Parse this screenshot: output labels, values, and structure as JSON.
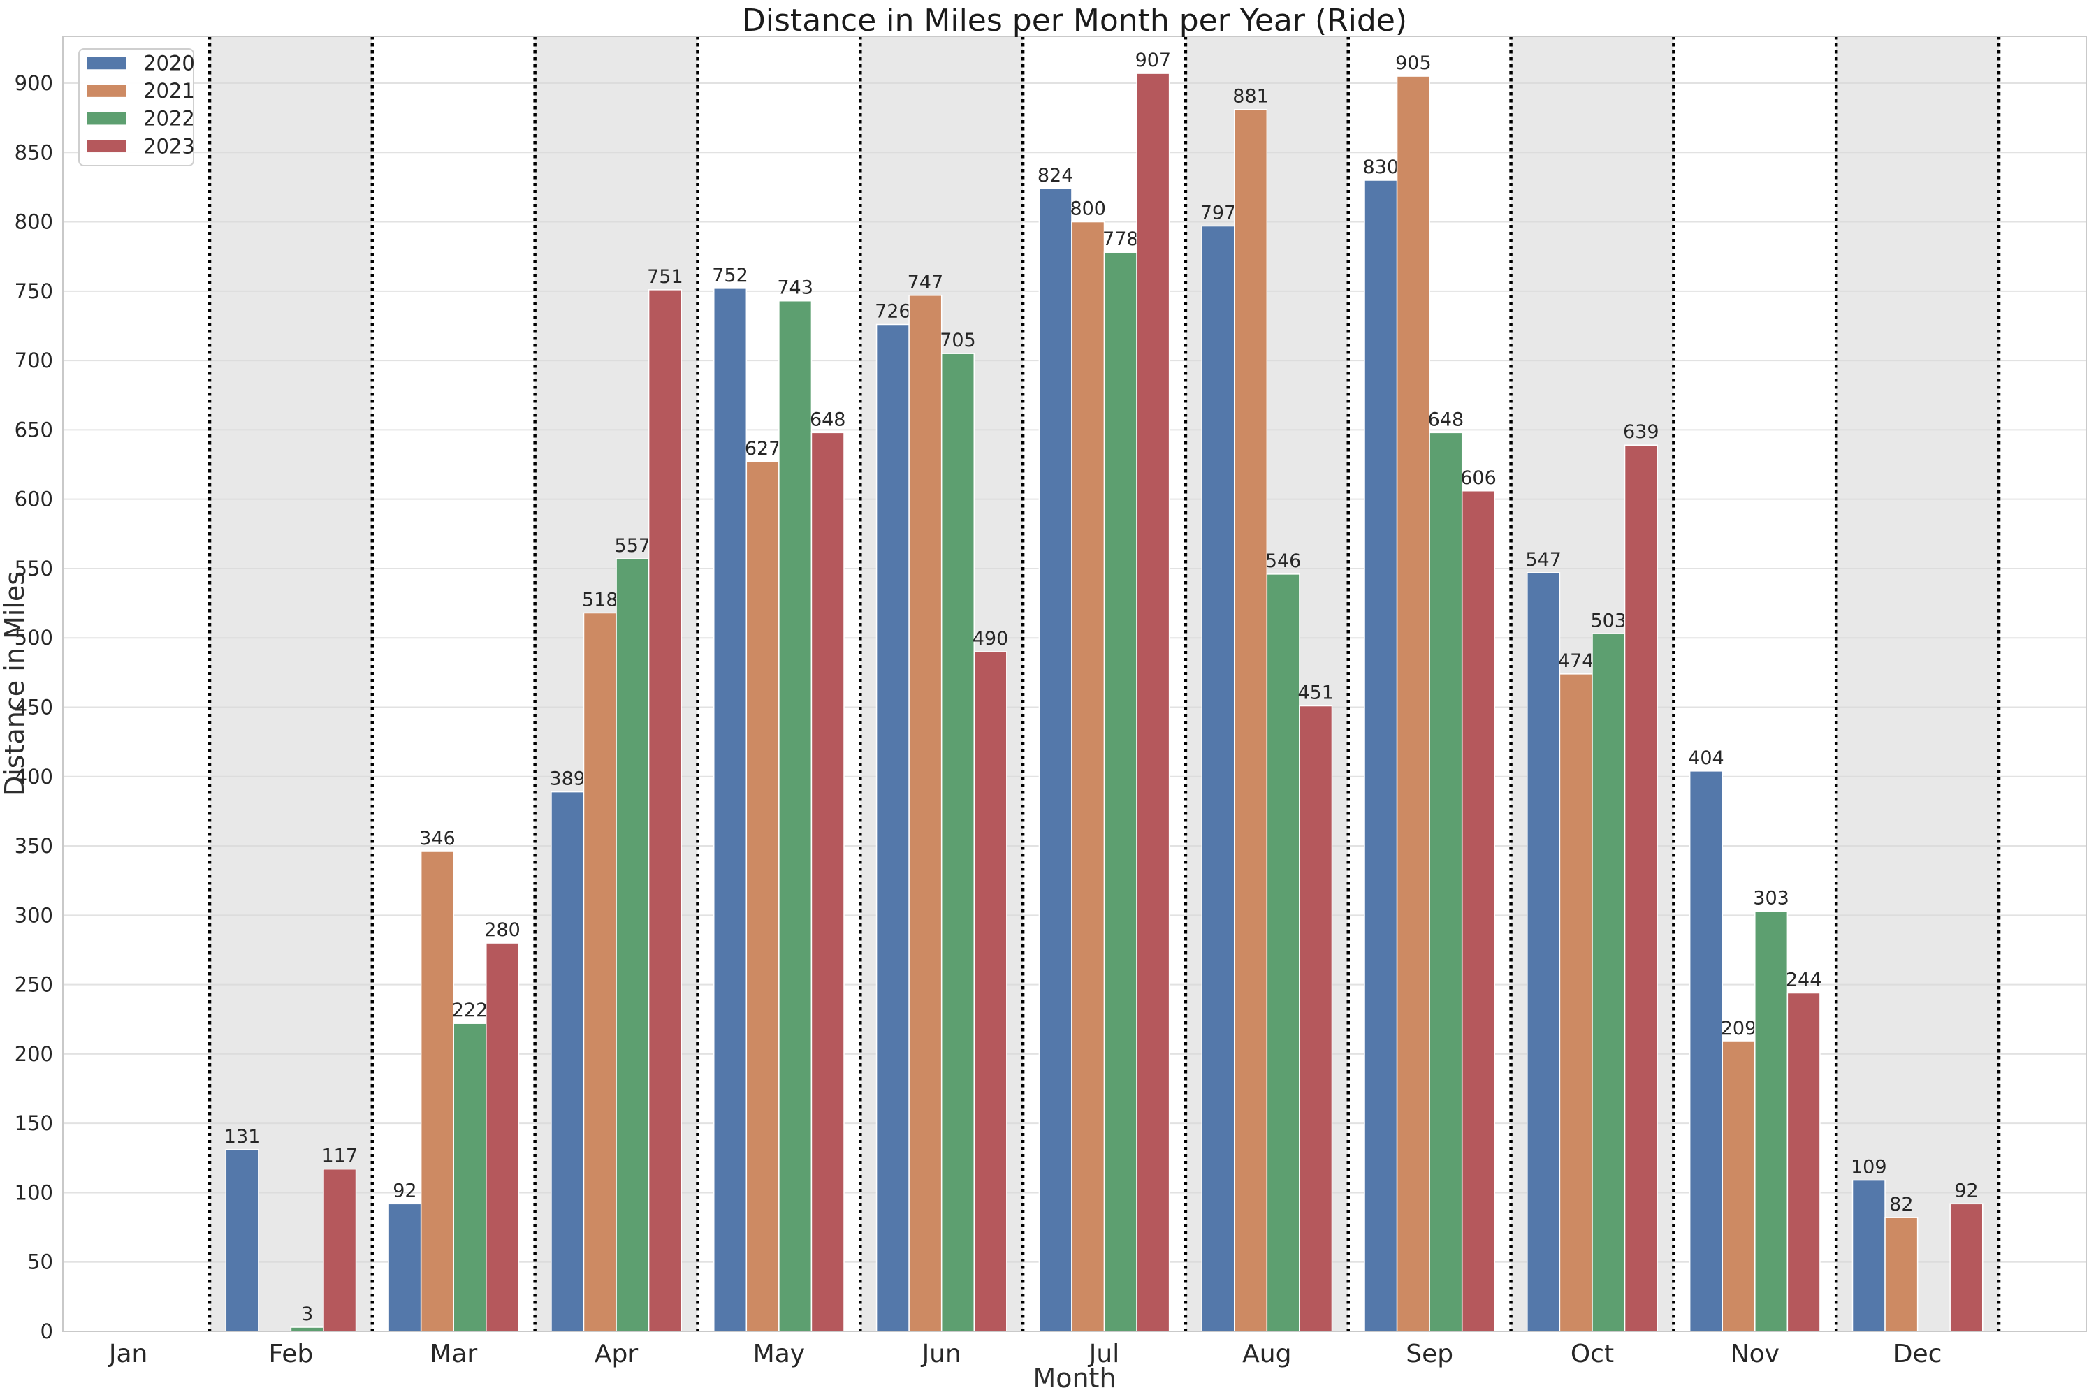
{
  "chart_data": {
    "type": "bar",
    "title": "Distance in Miles per Month per Year (Ride)",
    "xlabel": "Month",
    "ylabel": "Distance in Miles",
    "categories": [
      "Jan",
      "Feb",
      "Mar",
      "Apr",
      "May",
      "Jun",
      "Jul",
      "Aug",
      "Sep",
      "Oct",
      "Nov",
      "Dec"
    ],
    "series": [
      {
        "name": "2020",
        "color": "#5478aa",
        "values": [
          null,
          131,
          92,
          389,
          752,
          726,
          824,
          797,
          830,
          547,
          404,
          109
        ]
      },
      {
        "name": "2021",
        "color": "#cd8a63",
        "values": [
          null,
          null,
          346,
          518,
          627,
          747,
          800,
          881,
          905,
          474,
          209,
          82
        ]
      },
      {
        "name": "2022",
        "color": "#5d9f70",
        "values": [
          null,
          3,
          222,
          557,
          743,
          705,
          778,
          546,
          648,
          503,
          303,
          null
        ]
      },
      {
        "name": "2023",
        "color": "#b5585c",
        "values": [
          null,
          117,
          280,
          751,
          648,
          490,
          907,
          451,
          606,
          639,
          244,
          92
        ]
      }
    ],
    "yticks": [
      0,
      50,
      100,
      150,
      200,
      250,
      300,
      350,
      400,
      450,
      500,
      550,
      600,
      650,
      700,
      750,
      800,
      850,
      900
    ],
    "ylim": [
      0,
      934
    ],
    "grid": true,
    "bar_labels": true,
    "legend": {
      "position": "upper-left",
      "entries": [
        "2020",
        "2021",
        "2022",
        "2023"
      ]
    },
    "band_shading": {
      "shaded_months": [
        "Feb",
        "Apr",
        "Jun",
        "Aug",
        "Oct",
        "Dec"
      ],
      "band_color": "#e8e8e8"
    },
    "styles": {
      "separator_color": "#000000",
      "grid_color": "#d9d9d9",
      "spine_color": "#c9c9c9",
      "tick_color": "#2e2e2e",
      "value_label_color": "#262626",
      "background": "#ffffff"
    }
  }
}
